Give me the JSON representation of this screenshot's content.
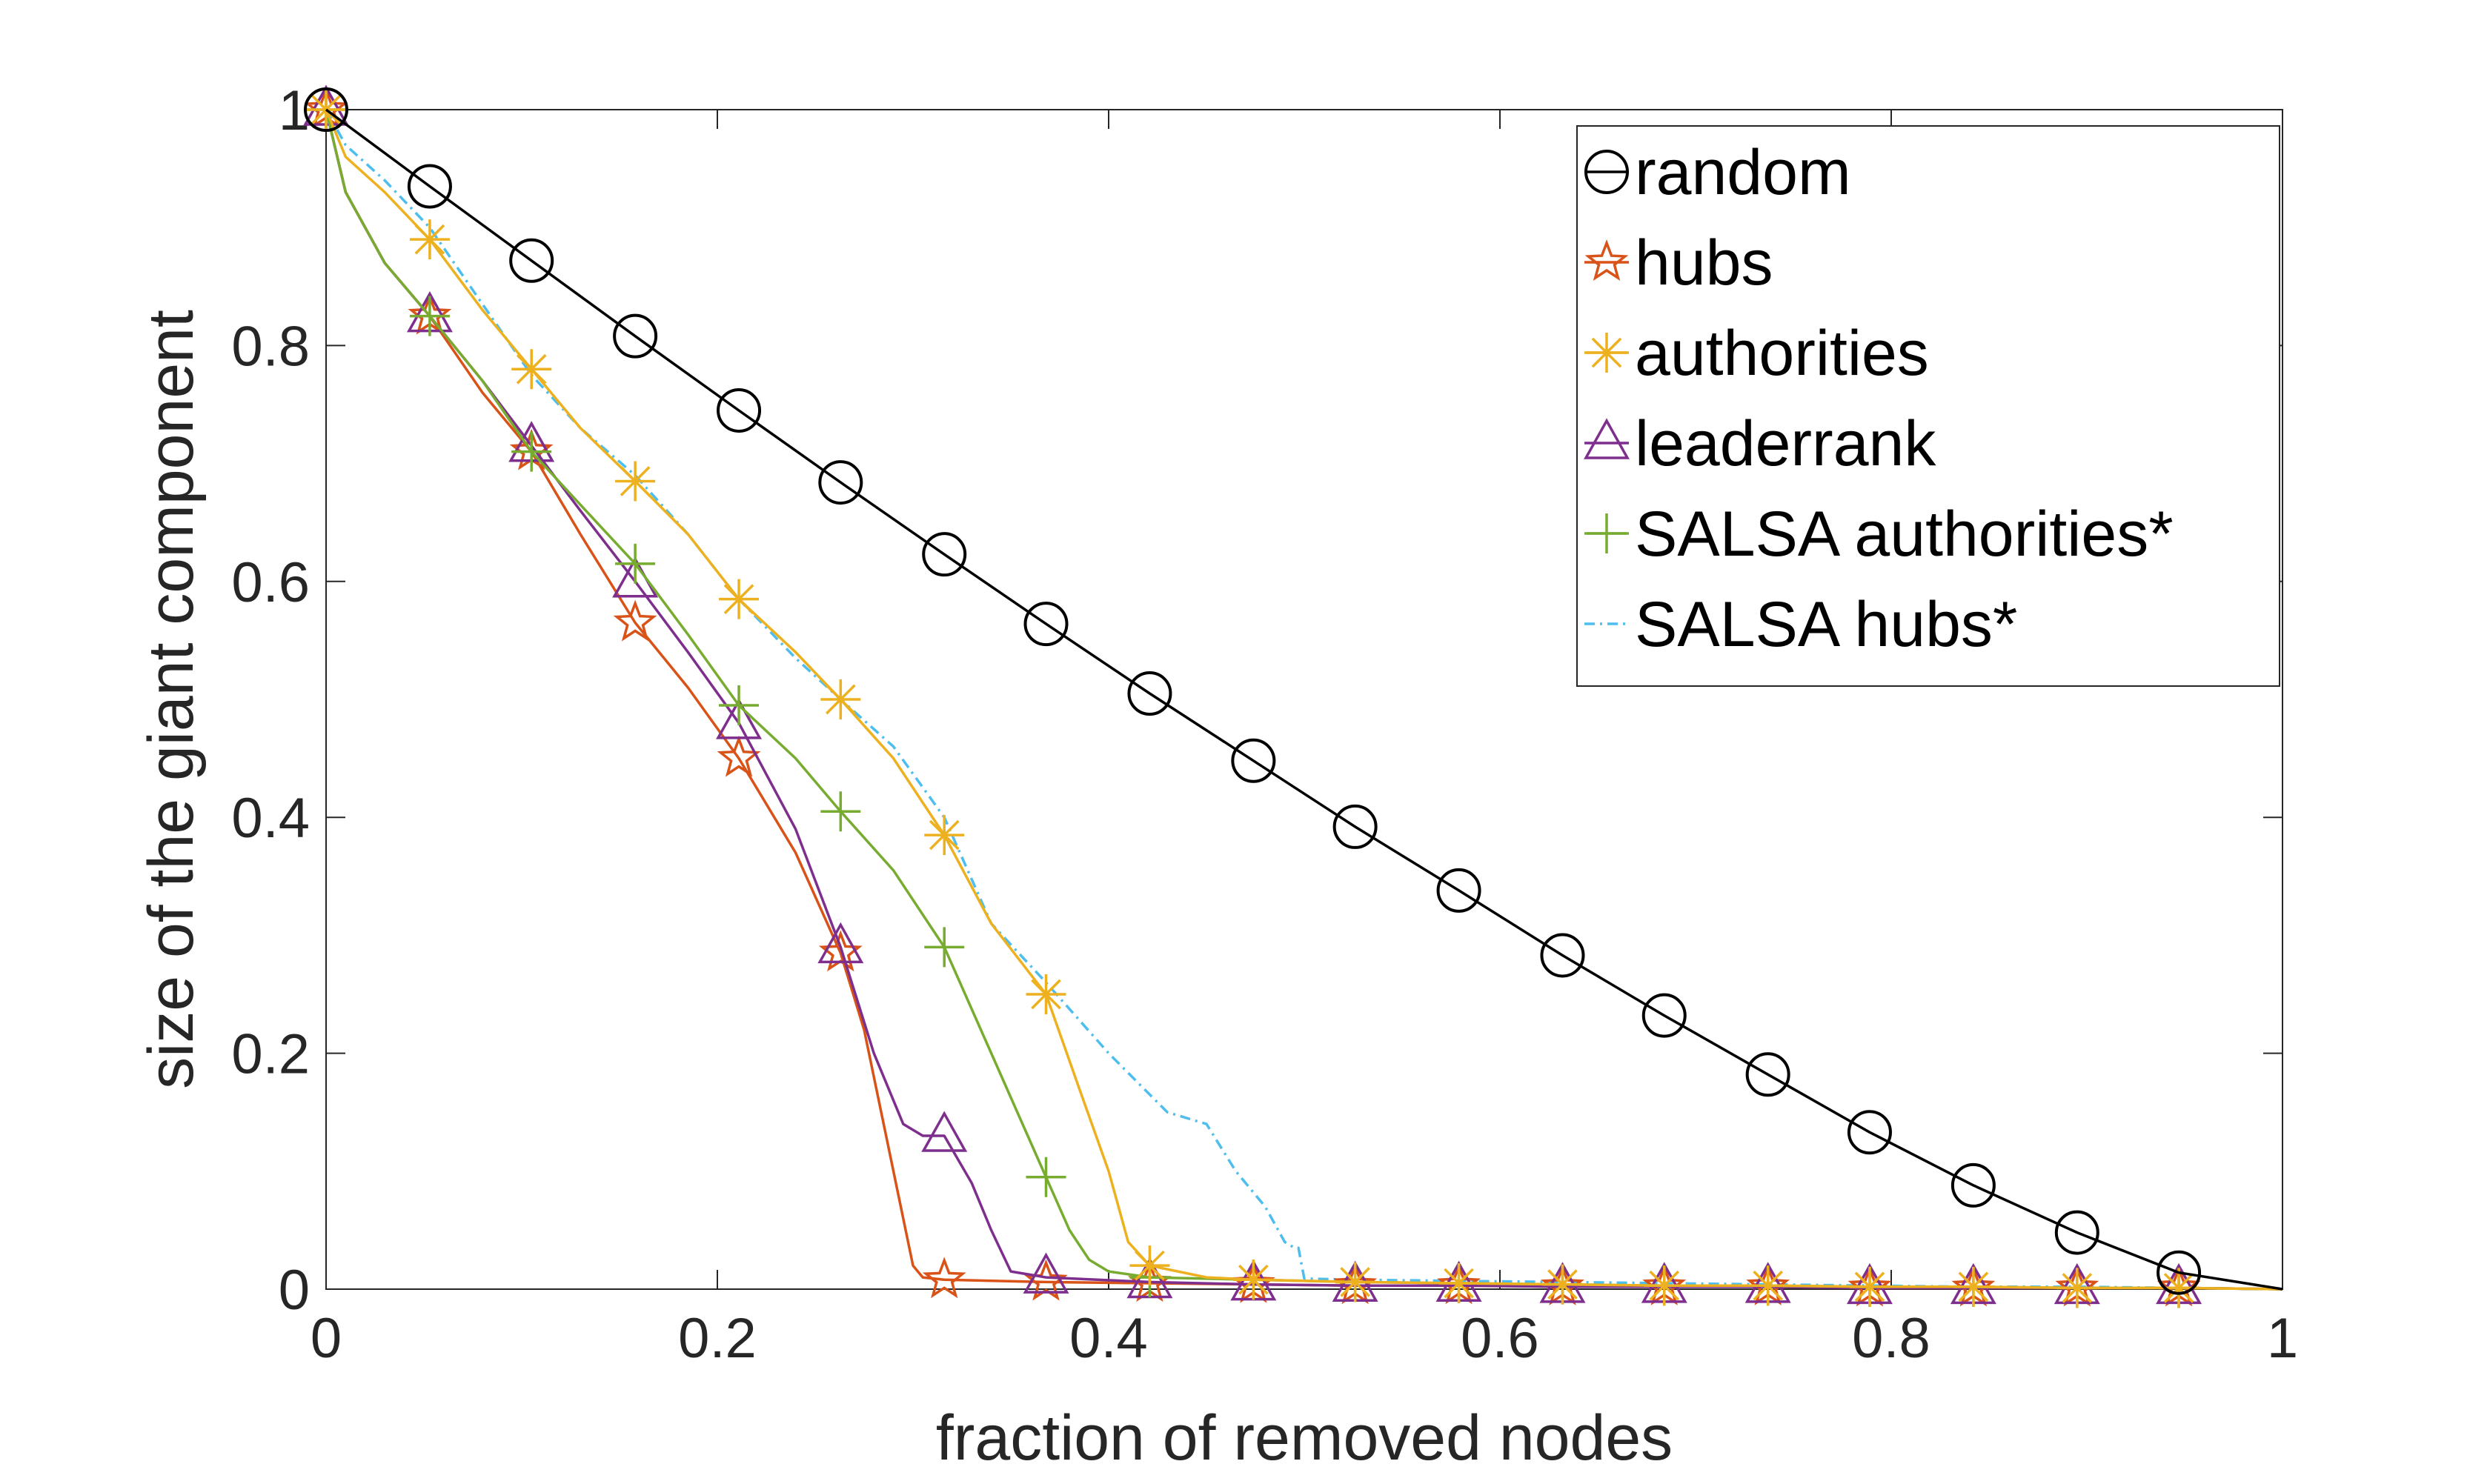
{
  "chart_data": {
    "type": "line",
    "title": "",
    "xlabel": "fraction of removed nodes",
    "ylabel": "size of the giant component",
    "xlim": [
      0,
      1
    ],
    "ylim": [
      0,
      1
    ],
    "xticks": [
      "0",
      "0.2",
      "0.4",
      "0.6",
      "0.8",
      "1"
    ],
    "yticks": [
      "0",
      "0.2",
      "0.4",
      "0.6",
      "0.8",
      "1"
    ],
    "grid": false,
    "legend_position": "top-right",
    "series": [
      {
        "name": "random",
        "color": "#000000",
        "marker": "circle",
        "line_style": "solid",
        "x": [
          0,
          0.053,
          0.105,
          0.158,
          0.211,
          0.263,
          0.316,
          0.368,
          0.421,
          0.474,
          0.526,
          0.579,
          0.632,
          0.684,
          0.737,
          0.789,
          0.842,
          0.895,
          0.947,
          1.0
        ],
        "y": [
          1.0,
          0.935,
          0.872,
          0.808,
          0.745,
          0.684,
          0.623,
          0.564,
          0.505,
          0.448,
          0.392,
          0.338,
          0.283,
          0.232,
          0.182,
          0.133,
          0.088,
          0.048,
          0.014,
          0.0
        ],
        "marker_indices": [
          0,
          1,
          2,
          3,
          4,
          5,
          6,
          7,
          8,
          9,
          10,
          11,
          12,
          13,
          14,
          15,
          16,
          17,
          18
        ]
      },
      {
        "name": "hubs",
        "color": "#D95319",
        "marker": "star",
        "line_style": "solid",
        "x": [
          0,
          0.01,
          0.03,
          0.053,
          0.08,
          0.105,
          0.13,
          0.158,
          0.185,
          0.211,
          0.24,
          0.263,
          0.275,
          0.285,
          0.295,
          0.3,
          0.305,
          0.316,
          0.368,
          0.421,
          0.474,
          0.526,
          0.579,
          0.632,
          0.684,
          0.737,
          0.789,
          0.842,
          0.895,
          0.947,
          1.0
        ],
        "y": [
          1.0,
          0.93,
          0.87,
          0.825,
          0.76,
          0.71,
          0.64,
          0.565,
          0.51,
          0.45,
          0.37,
          0.285,
          0.22,
          0.14,
          0.06,
          0.02,
          0.01,
          0.008,
          0.006,
          0.005,
          0.004,
          0.003,
          0.003,
          0.002,
          0.002,
          0.002,
          0.001,
          0.001,
          0.001,
          0.001,
          0.0
        ],
        "marker_indices": [
          0,
          3,
          5,
          7,
          9,
          11,
          17,
          18,
          19,
          20,
          21,
          22,
          23,
          24,
          25,
          26,
          27,
          28,
          29
        ]
      },
      {
        "name": "authorities",
        "color": "#EDB120",
        "marker": "asterisk",
        "line_style": "solid",
        "x": [
          0,
          0.01,
          0.03,
          0.053,
          0.08,
          0.105,
          0.13,
          0.158,
          0.185,
          0.211,
          0.24,
          0.263,
          0.29,
          0.316,
          0.34,
          0.368,
          0.385,
          0.4,
          0.41,
          0.421,
          0.45,
          0.474,
          0.526,
          0.579,
          0.632,
          0.684,
          0.737,
          0.789,
          0.842,
          0.895,
          0.947,
          1.0
        ],
        "y": [
          1.0,
          0.96,
          0.93,
          0.89,
          0.83,
          0.78,
          0.73,
          0.685,
          0.64,
          0.585,
          0.54,
          0.5,
          0.45,
          0.385,
          0.31,
          0.25,
          0.17,
          0.1,
          0.04,
          0.02,
          0.01,
          0.008,
          0.006,
          0.005,
          0.004,
          0.003,
          0.003,
          0.002,
          0.002,
          0.001,
          0.001,
          0.0
        ],
        "marker_indices": [
          0,
          3,
          5,
          7,
          9,
          11,
          13,
          15,
          19,
          21,
          22,
          23,
          24,
          25,
          26,
          27,
          28,
          29,
          30
        ]
      },
      {
        "name": "leaderrank",
        "color": "#7E2F8E",
        "marker": "triangle",
        "line_style": "solid",
        "x": [
          0,
          0.01,
          0.03,
          0.053,
          0.08,
          0.105,
          0.13,
          0.158,
          0.185,
          0.211,
          0.24,
          0.263,
          0.28,
          0.295,
          0.305,
          0.316,
          0.33,
          0.34,
          0.35,
          0.368,
          0.421,
          0.474,
          0.526,
          0.579,
          0.632,
          0.684,
          0.737,
          0.789,
          0.842,
          0.895,
          0.947,
          1.0
        ],
        "y": [
          1.0,
          0.93,
          0.87,
          0.825,
          0.77,
          0.715,
          0.66,
          0.6,
          0.54,
          0.48,
          0.39,
          0.29,
          0.2,
          0.14,
          0.13,
          0.13,
          0.09,
          0.05,
          0.015,
          0.01,
          0.006,
          0.004,
          0.003,
          0.003,
          0.002,
          0.002,
          0.002,
          0.001,
          0.001,
          0.001,
          0.001,
          0.0
        ],
        "marker_indices": [
          0,
          3,
          5,
          7,
          9,
          11,
          15,
          19,
          20,
          21,
          22,
          23,
          24,
          25,
          26,
          27,
          28,
          29,
          30
        ]
      },
      {
        "name": "SALSA authorities*",
        "color": "#77AC30",
        "marker": "plus",
        "line_style": "solid",
        "x": [
          0,
          0.01,
          0.03,
          0.053,
          0.08,
          0.105,
          0.13,
          0.158,
          0.185,
          0.211,
          0.24,
          0.263,
          0.29,
          0.316,
          0.34,
          0.368,
          0.38,
          0.39,
          0.4,
          0.421,
          0.474,
          0.526,
          0.579,
          0.632,
          0.684,
          0.737,
          0.789,
          0.842,
          0.895,
          0.947,
          1.0
        ],
        "y": [
          1.0,
          0.93,
          0.87,
          0.825,
          0.77,
          0.71,
          0.665,
          0.615,
          0.555,
          0.495,
          0.45,
          0.405,
          0.355,
          0.29,
          0.2,
          0.095,
          0.05,
          0.025,
          0.015,
          0.01,
          0.008,
          0.006,
          0.005,
          0.004,
          0.003,
          0.003,
          0.002,
          0.002,
          0.001,
          0.001,
          0.0
        ],
        "marker_indices": [
          0,
          3,
          5,
          7,
          9,
          11,
          13,
          15,
          19,
          20,
          21,
          22,
          23,
          24,
          25,
          26,
          27,
          28,
          29
        ]
      },
      {
        "name": "SALSA hubs*",
        "color": "#4DBEEE",
        "marker": "none",
        "line_style": "dash-dot",
        "x": [
          0,
          0.01,
          0.03,
          0.053,
          0.08,
          0.105,
          0.13,
          0.158,
          0.185,
          0.211,
          0.24,
          0.263,
          0.29,
          0.316,
          0.34,
          0.368,
          0.4,
          0.43,
          0.45,
          0.465,
          0.48,
          0.49,
          0.495,
          0.497,
          0.5,
          0.526,
          0.579,
          0.632,
          0.684,
          0.737,
          0.789,
          0.842,
          0.895,
          0.947,
          1.0
        ],
        "y": [
          1.0,
          0.97,
          0.94,
          0.9,
          0.835,
          0.775,
          0.73,
          0.69,
          0.64,
          0.585,
          0.535,
          0.5,
          0.46,
          0.4,
          0.31,
          0.26,
          0.2,
          0.15,
          0.14,
          0.1,
          0.07,
          0.04,
          0.035,
          0.035,
          0.009,
          0.008,
          0.007,
          0.006,
          0.005,
          0.004,
          0.003,
          0.002,
          0.002,
          0.001,
          0.0
        ],
        "marker_indices": []
      }
    ]
  }
}
